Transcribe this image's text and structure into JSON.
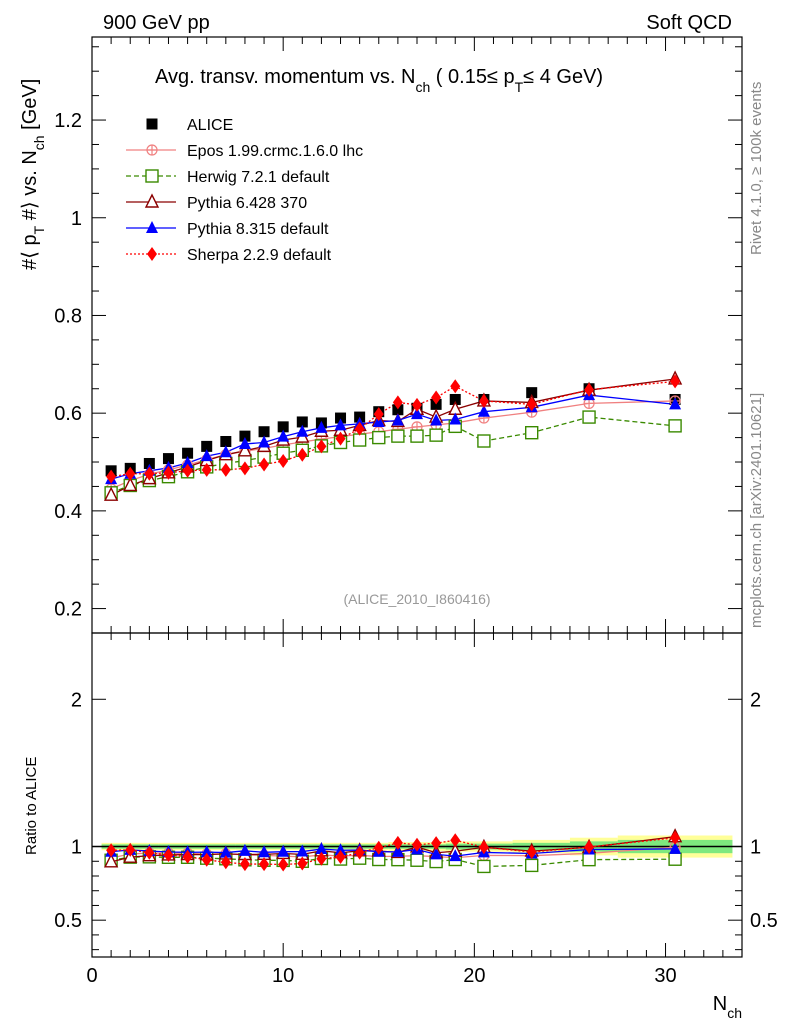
{
  "header": {
    "left": "900 GeV pp",
    "right": "Soft QCD"
  },
  "side_text": {
    "rivet": "Rivet 4.1.0, ≥ 100k events",
    "site": "mcplots.cern.ch [arXiv:2401.10621]"
  },
  "watermark": "(ALICE_2010_I860416)",
  "chart_data": [
    {
      "type": "scatter",
      "title": "Avg. transv. momentum vs. N_ch ( 0.15≤ p_T≤ 4 GeV)",
      "ylabel": "#⟨ p_T #⟩ vs. N_ch [GeV]",
      "xlim": [
        0,
        34
      ],
      "ylim": [
        0.15,
        1.37
      ],
      "yticks": [
        0.2,
        0.4,
        0.6,
        0.8,
        1,
        1.2
      ],
      "ytick_labels": [
        "0.2",
        "0.4",
        "0.6",
        "0.8",
        "1",
        "1.2"
      ],
      "series": [
        {
          "name": "ALICE",
          "color": "#000000",
          "marker": "square-filled",
          "line": "none",
          "x": [
            1,
            2,
            3,
            4,
            5,
            6,
            7,
            8,
            9,
            10,
            11,
            12,
            13,
            14,
            15,
            16,
            17,
            18,
            19,
            20.5,
            23,
            26,
            30.5
          ],
          "y": [
            0.482,
            0.487,
            0.497,
            0.507,
            0.518,
            0.532,
            0.542,
            0.553,
            0.562,
            0.572,
            0.582,
            0.58,
            0.59,
            0.592,
            0.603,
            0.607,
            0.61,
            0.618,
            0.628,
            0.628,
            0.642,
            0.65,
            0.628
          ]
        },
        {
          "name": "Epos 1.99.crmc.1.6.0 lhc",
          "color": "#f08080",
          "marker": "cross-circle",
          "line": "solid",
          "x": [
            1,
            2,
            3,
            4,
            5,
            6,
            7,
            8,
            9,
            10,
            11,
            12,
            13,
            14,
            15,
            16,
            17,
            18,
            19,
            20.5,
            23,
            26,
            30.5
          ],
          "y": [
            0.445,
            0.462,
            0.475,
            0.484,
            0.494,
            0.505,
            0.515,
            0.522,
            0.528,
            0.535,
            0.541,
            0.547,
            0.552,
            0.557,
            0.562,
            0.567,
            0.572,
            0.576,
            0.58,
            0.59,
            0.602,
            0.62,
            0.625
          ]
        },
        {
          "name": "Herwig 7.2.1 default",
          "color": "#3a8a00",
          "marker": "square-open",
          "line": "dashed",
          "x": [
            1,
            2,
            3,
            4,
            5,
            6,
            7,
            8,
            9,
            10,
            11,
            12,
            13,
            14,
            15,
            16,
            17,
            18,
            19,
            20.5,
            23,
            26,
            30.5
          ],
          "y": [
            0.437,
            0.452,
            0.462,
            0.47,
            0.48,
            0.49,
            0.497,
            0.503,
            0.51,
            0.518,
            0.524,
            0.533,
            0.54,
            0.545,
            0.55,
            0.553,
            0.553,
            0.555,
            0.573,
            0.543,
            0.56,
            0.592,
            0.574
          ]
        },
        {
          "name": "Pythia 6.428 370",
          "color": "#8b0000",
          "marker": "triangle-open",
          "line": "solid",
          "x": [
            1,
            2,
            3,
            4,
            5,
            6,
            7,
            8,
            9,
            10,
            11,
            12,
            13,
            14,
            15,
            16,
            17,
            18,
            19,
            20.5,
            23,
            26,
            30.5
          ],
          "y": [
            0.432,
            0.452,
            0.466,
            0.478,
            0.49,
            0.503,
            0.515,
            0.523,
            0.532,
            0.545,
            0.551,
            0.563,
            0.565,
            0.575,
            0.585,
            0.583,
            0.608,
            0.592,
            0.608,
            0.625,
            0.622,
            0.647,
            0.67
          ]
        },
        {
          "name": "Pythia 8.315 default",
          "color": "#0000ff",
          "marker": "triangle-filled",
          "line": "solid",
          "x": [
            1,
            2,
            3,
            4,
            5,
            6,
            7,
            8,
            9,
            10,
            11,
            12,
            13,
            14,
            15,
            16,
            17,
            18,
            19,
            20.5,
            23,
            26,
            30.5
          ],
          "y": [
            0.465,
            0.476,
            0.482,
            0.488,
            0.498,
            0.512,
            0.52,
            0.537,
            0.54,
            0.552,
            0.562,
            0.57,
            0.575,
            0.578,
            0.582,
            0.585,
            0.598,
            0.585,
            0.587,
            0.603,
            0.612,
            0.637,
            0.618
          ]
        },
        {
          "name": "Sherpa 2.2.9 default",
          "color": "#ff0000",
          "marker": "diamond-filled",
          "line": "dotted",
          "x": [
            1,
            2,
            3,
            4,
            5,
            6,
            7,
            8,
            9,
            10,
            11,
            12,
            13,
            14,
            15,
            16,
            17,
            18,
            19,
            20.5,
            23,
            26,
            30.5
          ],
          "y": [
            0.47,
            0.476,
            0.476,
            0.478,
            0.482,
            0.484,
            0.484,
            0.487,
            0.495,
            0.502,
            0.515,
            0.532,
            0.548,
            0.568,
            0.598,
            0.622,
            0.617,
            0.632,
            0.655,
            0.625,
            0.618,
            0.648,
            0.665
          ]
        }
      ]
    },
    {
      "type": "scatter",
      "title": "Ratio to ALICE",
      "ylabel": "Ratio to ALICE",
      "xlabel": "N_ch",
      "xlim": [
        0,
        34
      ],
      "ylim": [
        0.25,
        2.45
      ],
      "yticks": [
        0.5,
        1,
        2
      ],
      "ytick_labels": [
        "0.5",
        "1",
        "2"
      ],
      "xticks": [
        0,
        10,
        20,
        30
      ],
      "xtick_labels": [
        "0",
        "10",
        "20",
        "30"
      ],
      "band_inner": {
        "color": "#7ee87e",
        "x": [
          0.5,
          3.5,
          7.5,
          12.5,
          15.5,
          18.5,
          22,
          25,
          27.5,
          33.5
        ],
        "lo": [
          0.985,
          0.985,
          0.985,
          0.985,
          0.985,
          0.98,
          0.975,
          0.965,
          0.955,
          0.955
        ],
        "hi": [
          1.015,
          1.015,
          1.015,
          1.015,
          1.015,
          1.02,
          1.025,
          1.035,
          1.045,
          1.045
        ]
      },
      "band_outer": {
        "color": "#ffff99",
        "x": [
          0.5,
          3.5,
          7.5,
          12.5,
          15.5,
          18.5,
          22,
          25,
          27.5,
          33.5
        ],
        "lo": [
          0.975,
          0.975,
          0.975,
          0.975,
          0.97,
          0.965,
          0.955,
          0.94,
          0.925,
          0.925
        ],
        "hi": [
          1.025,
          1.025,
          1.025,
          1.025,
          1.03,
          1.035,
          1.045,
          1.06,
          1.075,
          1.075
        ]
      },
      "ratio_series": [
        {
          "name": "Epos 1.99.crmc.1.6.0 lhc",
          "y": [
            0.923,
            0.949,
            0.956,
            0.955,
            0.954,
            0.949,
            0.95,
            0.944,
            0.94,
            0.935,
            0.93,
            0.943,
            0.936,
            0.941,
            0.932,
            0.934,
            0.938,
            0.932,
            0.924,
            0.94,
            0.938,
            0.954,
            0.995
          ]
        },
        {
          "name": "Herwig 7.2.1 default",
          "y": [
            0.907,
            0.928,
            0.93,
            0.927,
            0.927,
            0.921,
            0.917,
            0.91,
            0.907,
            0.906,
            0.9,
            0.919,
            0.915,
            0.921,
            0.912,
            0.911,
            0.907,
            0.898,
            0.912,
            0.865,
            0.872,
            0.911,
            0.914
          ]
        },
        {
          "name": "Pythia 6.428 370",
          "y": [
            0.896,
            0.928,
            0.938,
            0.943,
            0.946,
            0.945,
            0.95,
            0.946,
            0.947,
            0.953,
            0.947,
            0.971,
            0.958,
            0.971,
            0.97,
            0.96,
            0.997,
            0.958,
            0.968,
            0.995,
            0.969,
            0.995,
            1.067
          ]
        },
        {
          "name": "Pythia 8.315 default",
          "y": [
            0.965,
            0.977,
            0.97,
            0.963,
            0.961,
            0.962,
            0.959,
            0.971,
            0.961,
            0.965,
            0.966,
            0.983,
            0.975,
            0.976,
            0.965,
            0.964,
            0.98,
            0.947,
            0.935,
            0.96,
            0.953,
            0.98,
            0.984
          ]
        },
        {
          "name": "Sherpa 2.2.9 default",
          "y": [
            0.975,
            0.977,
            0.958,
            0.943,
            0.931,
            0.91,
            0.893,
            0.881,
            0.881,
            0.878,
            0.885,
            0.917,
            0.929,
            0.959,
            0.992,
            1.025,
            1.012,
            1.023,
            1.043,
            0.995,
            0.963,
            0.997,
            1.059
          ]
        }
      ]
    }
  ]
}
